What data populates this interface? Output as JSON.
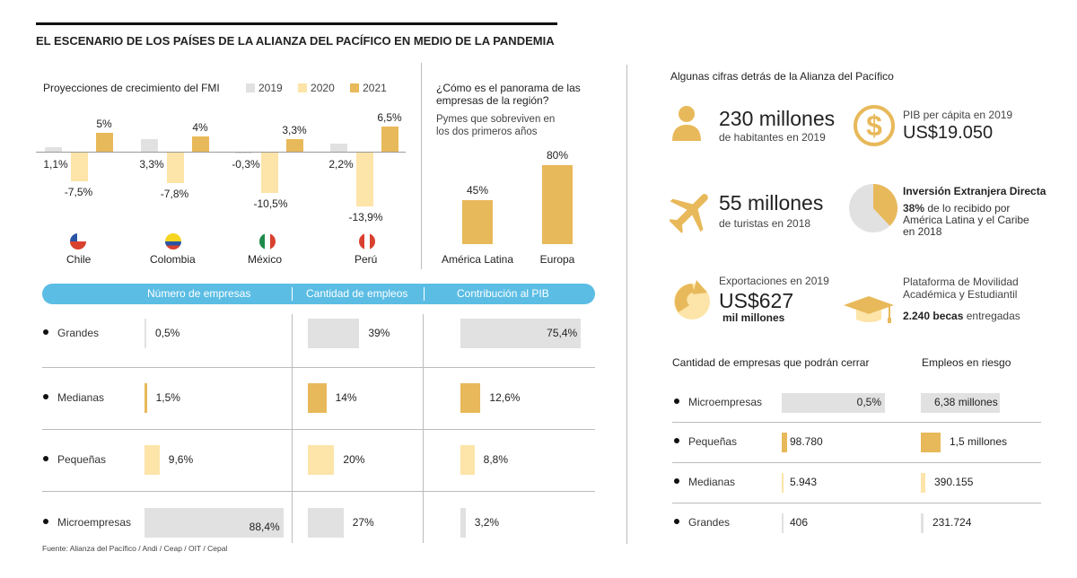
{
  "title": "EL ESCENARIO DE LOS PAÍSES DE LA ALIANZA DEL PACÍFICO EN MEDIO DE LA PANDEMIA",
  "colors": {
    "y2019": "#e1e1e1",
    "y2020": "#fde4a8",
    "y2021": "#e8b95a",
    "header": "#5bbde4"
  },
  "source": "Fuente: Alianza del Pacífico / Andi / Ceap / OIT / Cepal",
  "chart_data": [
    {
      "type": "bar",
      "title": "Proyecciones de crecimiento del FMI",
      "categories": [
        "Chile",
        "Colombia",
        "México",
        "Perú"
      ],
      "series": [
        {
          "name": "2019",
          "values": [
            1.1,
            3.3,
            -0.3,
            2.2
          ],
          "labels": [
            "1,1%",
            "3,3%",
            "-0,3%",
            "2,2%"
          ]
        },
        {
          "name": "2020",
          "values": [
            -7.5,
            -7.8,
            -10.5,
            -13.9
          ],
          "labels": [
            "-7,5%",
            "-7,8%",
            "-10,5%",
            "-13,9%"
          ]
        },
        {
          "name": "2021",
          "values": [
            5,
            4,
            3.3,
            6.5
          ],
          "labels": [
            "5%",
            "4%",
            "3,3%",
            "6,5%"
          ]
        }
      ],
      "legend": "top-right"
    },
    {
      "type": "bar",
      "title": "¿Cómo es el panorama de las empresas de la región?",
      "subtitle": "Pymes que sobreviven en los dos primeros años",
      "categories": [
        "América Latina",
        "Europa"
      ],
      "values": [
        45,
        80
      ],
      "labels": [
        "45%",
        "80%"
      ]
    },
    {
      "type": "table",
      "columns": [
        "Número de empresas",
        "Cantidad de empleos",
        "Contribución al PIB"
      ],
      "rows": [
        {
          "name": "Grandes",
          "values": [
            0.5,
            39,
            75.4
          ],
          "labels": [
            "0,5%",
            "39%",
            "75,4%"
          ],
          "color": "#e1e1e1"
        },
        {
          "name": "Medianas",
          "values": [
            1.5,
            14,
            12.6
          ],
          "labels": [
            "1,5%",
            "14%",
            "12,6%"
          ],
          "color": "#e8b95a"
        },
        {
          "name": "Pequeñas",
          "values": [
            9.6,
            20,
            8.8
          ],
          "labels": [
            "9,6%",
            "20%",
            "8,8%"
          ],
          "color": "#fde4a8"
        },
        {
          "name": "Microempresas",
          "values": [
            88.4,
            27,
            3.2
          ],
          "labels": [
            "88,4%",
            "27%",
            "3,2%"
          ],
          "color": "#e1e1e1"
        }
      ]
    },
    {
      "type": "table",
      "columns": [
        "Cantidad de empresas que podrán cerrar",
        "Empleos en riesgo"
      ],
      "rows": [
        {
          "name": "Microempresas",
          "col1": "0,5%",
          "col2": "6,38 millones",
          "color": "#e1e1e1"
        },
        {
          "name": "Pequeñas",
          "col1": "98.780",
          "col2": "1,5 millones",
          "color": "#e8b95a"
        },
        {
          "name": "Medianas",
          "col1": "5.943",
          "col2": "390.155",
          "color": "#fde4a8"
        },
        {
          "name": "Grandes",
          "col1": "406",
          "col2": "231.724",
          "color": "#e1e1e1"
        }
      ]
    }
  ],
  "facts": {
    "heading": "Algunas cifras detrás de la Alianza del Pacífico",
    "pop_big": "230 millones",
    "pop_small": "de habitantes en 2019",
    "pib_small": "PIB per cápita en 2019",
    "pib_big": "US$19.050",
    "tour_big": "55 millones",
    "tour_small": "de turistas en 2018",
    "ied_title": "Inversión Extranjera Directa",
    "ied_pct": "38%",
    "ied_text1": " de lo recibido por",
    "ied_text2": "América Latina y el Caribe",
    "ied_text3": "en 2018",
    "ied_value": 38,
    "exp_small": "Exportaciones en 2019",
    "exp_big": "US$627",
    "exp_unit": "mil millones",
    "beca_t1": "Plataforma de Movilidad",
    "beca_t2": "Académica y Estudiantil",
    "beca_num": "2.240 becas",
    "beca_rest": " entregadas"
  }
}
